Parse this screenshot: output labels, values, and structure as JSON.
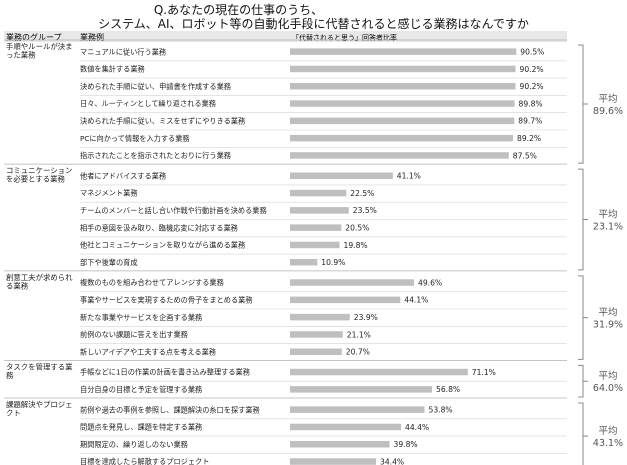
{
  "title_lines": [
    "Q.あなたの現在の仕事のうち、",
    "システム、AI、ロボット等の自動化手段に代替されると感じる業務はなんですか"
  ],
  "header": {
    "group_col": "業務のグループ",
    "task_col": "業務例",
    "legend_label": "「代替されると思う」回答者比率"
  },
  "average_label": "平均",
  "colors": {
    "bar": "#bfbfbf",
    "header_bg": "#e8e8e8",
    "rule": "#b0b0b0",
    "text": "#222222",
    "bracket": "#888888"
  },
  "chart_data": {
    "type": "bar",
    "orientation": "horizontal",
    "xlim": [
      0,
      100
    ],
    "unit": "%",
    "groups": [
      {
        "name": "手順やルールが決まった業務",
        "average": "89.6%",
        "tasks": [
          {
            "label": "マニュアルに従い行う業務",
            "value": 90.5,
            "display": "90.5%"
          },
          {
            "label": "数値を集計する業務",
            "value": 90.2,
            "display": "90.2%"
          },
          {
            "label": "決められた手順に従い、申請書を作成する業務",
            "value": 90.2,
            "display": "90.2%"
          },
          {
            "label": "日々、ルーティンとして繰り返される業務",
            "value": 89.8,
            "display": "89.8%"
          },
          {
            "label": "決められた手順に従い、ミスをせずにやりきる業務",
            "value": 89.7,
            "display": "89.7%"
          },
          {
            "label": "PCに向かって情報を入力する業務",
            "value": 89.2,
            "display": "89.2%"
          },
          {
            "label": "指示されたことを指示されたとおりに行う業務",
            "value": 87.5,
            "display": "87.5%"
          }
        ]
      },
      {
        "name": "コミュニケーションを必要とする業務",
        "average": "23.1%",
        "tasks": [
          {
            "label": "他者にアドバイスする業務",
            "value": 41.1,
            "display": "41.1%"
          },
          {
            "label": "マネジメント業務",
            "value": 22.5,
            "display": "22.5%"
          },
          {
            "label": "チームのメンバーと話し合い作戦や行動計画を決める業務",
            "value": 23.5,
            "display": "23.5%"
          },
          {
            "label": "相手の意図を汲み取り、臨機応変に対応する業務",
            "value": 20.5,
            "display": "20.5%"
          },
          {
            "label": "他社とコミュニケーションを取りながら進める業務",
            "value": 19.8,
            "display": "19.8%"
          },
          {
            "label": "部下や後輩の育成",
            "value": 10.9,
            "display": "10.9%"
          }
        ]
      },
      {
        "name": "創意工夫が求められる業務",
        "average": "31.9%",
        "tasks": [
          {
            "label": "複数のものを組み合わせてアレンジする業務",
            "value": 49.6,
            "display": "49.6%"
          },
          {
            "label": "事業やサービスを実現するための骨子をまとめる業務",
            "value": 44.1,
            "display": "44.1%"
          },
          {
            "label": "新たな事業やサービスを企画する業務",
            "value": 23.9,
            "display": "23.9%"
          },
          {
            "label": "前例のない課題に答えを出す業務",
            "value": 21.1,
            "display": "21.1%"
          },
          {
            "label": "新しいアイデアや工夫する点を考える業務",
            "value": 20.7,
            "display": "20.7%"
          }
        ]
      },
      {
        "name": "タスクを管理する業務",
        "average": "64.0%",
        "tasks": [
          {
            "label": "手帳などに1日の作業の計画を書き込み整理する業務",
            "value": 71.1,
            "display": "71.1%"
          },
          {
            "label": "自分自身の目標と予定を管理する業務",
            "value": 56.8,
            "display": "56.8%"
          }
        ]
      },
      {
        "name": "課題解決やプロジェクト",
        "average": "43.1%",
        "tasks": [
          {
            "label": "前例や過去の事例を参照し、課題解決の糸口を探す業務",
            "value": 53.8,
            "display": "53.8%"
          },
          {
            "label": "問題点を発見し、課題を特定する業務",
            "value": 44.4,
            "display": "44.4%"
          },
          {
            "label": "期間限定の、繰り返しのない業務",
            "value": 39.8,
            "display": "39.8%"
          },
          {
            "label": "目標を達成したら解散するプロジェクト",
            "value": 34.4,
            "display": "34.4%"
          }
        ]
      }
    ]
  }
}
